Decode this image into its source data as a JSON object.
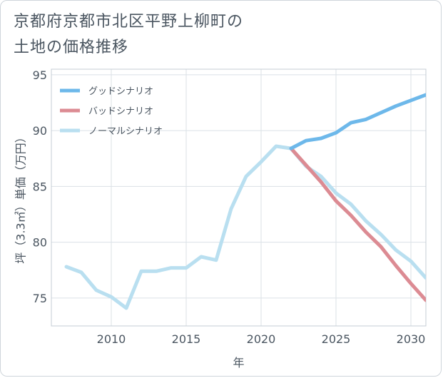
{
  "title_lines": [
    "京都府京都市北区平野上柳町の",
    "土地の価格推移"
  ],
  "chart_data": {
    "type": "line",
    "xlabel": "年",
    "ylabel": "坪（3.3㎡）単価（万円）",
    "xlim": [
      2006,
      2031
    ],
    "ylim": [
      72.5,
      95.5
    ],
    "xticks": [
      2010,
      2015,
      2020,
      2025,
      2030
    ],
    "yticks": [
      75,
      80,
      85,
      90,
      95
    ],
    "grid": true,
    "legend_position": "top-left",
    "series": [
      {
        "name": "グッドシナリオ",
        "color": "#6db8ea",
        "x": [
          2022,
          2023,
          2024,
          2025,
          2026,
          2027,
          2028,
          2029,
          2030,
          2031
        ],
        "y": [
          88.4,
          89.1,
          89.3,
          89.8,
          90.7,
          91.0,
          91.6,
          92.2,
          92.7,
          93.2
        ]
      },
      {
        "name": "バッドシナリオ",
        "color": "#dc8b93",
        "x": [
          2022,
          2023,
          2024,
          2025,
          2026,
          2027,
          2028,
          2029,
          2030,
          2031
        ],
        "y": [
          88.4,
          86.9,
          85.4,
          83.7,
          82.4,
          80.9,
          79.6,
          77.9,
          76.3,
          74.8
        ]
      },
      {
        "name": "ノーマルシナリオ",
        "color": "#b9dff0",
        "x": [
          2007,
          2008,
          2009,
          2010,
          2011,
          2012,
          2013,
          2014,
          2015,
          2016,
          2017,
          2018,
          2019,
          2020,
          2021,
          2022,
          2023,
          2024,
          2025,
          2026,
          2027,
          2028,
          2029,
          2030,
          2031
        ],
        "y": [
          77.8,
          77.3,
          75.7,
          75.1,
          74.1,
          77.4,
          77.4,
          77.7,
          77.7,
          78.7,
          78.4,
          83.0,
          85.9,
          87.2,
          88.6,
          88.4,
          86.8,
          85.9,
          84.4,
          83.4,
          81.9,
          80.7,
          79.3,
          78.3,
          76.8
        ]
      }
    ]
  }
}
